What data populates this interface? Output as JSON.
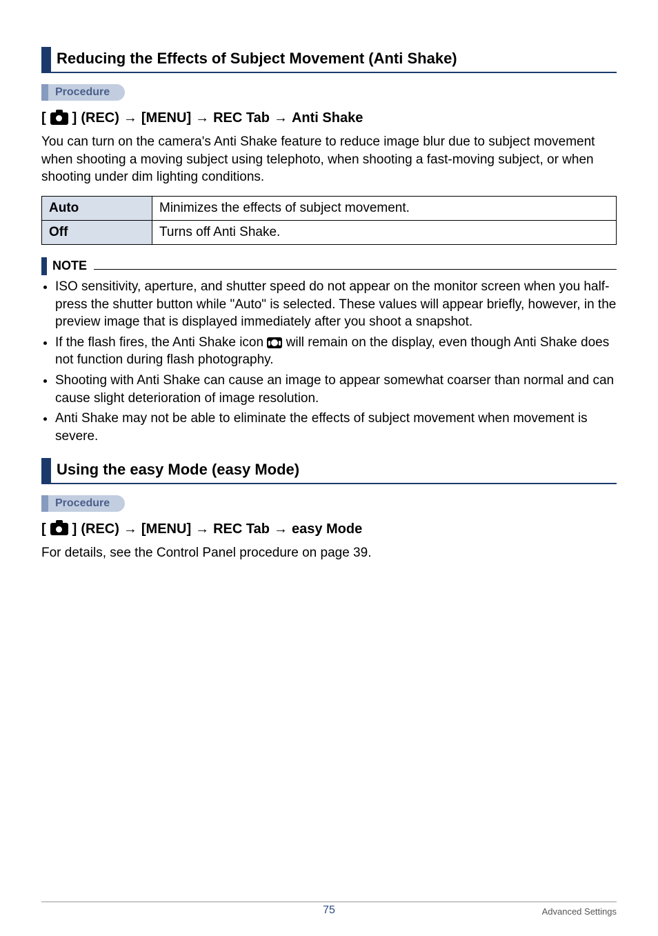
{
  "sections": {
    "anti_shake": {
      "heading": "Reducing the Effects of Subject Movement (Anti Shake)",
      "procedure_label": "Procedure",
      "breadcrumb": {
        "rec": "(REC)",
        "menu": "[MENU]",
        "tab": "REC Tab",
        "target": "Anti Shake"
      },
      "intro": "You can turn on the camera's Anti Shake feature to reduce image blur due to subject movement when shooting a moving subject using telephoto, when shooting a fast-moving subject, or when shooting under dim lighting conditions.",
      "table": {
        "rows": [
          {
            "key": "Auto",
            "value": "Minimizes the effects of subject movement."
          },
          {
            "key": "Off",
            "value": "Turns off Anti Shake."
          }
        ]
      },
      "note_label": "NOTE",
      "notes": {
        "n0": "ISO sensitivity, aperture, and shutter speed do not appear on the monitor screen when you half-press the shutter button while \"Auto\" is selected. These values will appear briefly, however, in the preview image that is displayed immediately after you shoot a snapshot.",
        "n1a": "If the flash fires, the Anti Shake icon ",
        "n1b": " will remain on the display, even though Anti Shake does not function during flash photography.",
        "n2": "Shooting with Anti Shake can cause an image to appear somewhat coarser than normal and can cause slight deterioration of image resolution.",
        "n3": "Anti Shake may not be able to eliminate the effects of subject movement when movement is severe."
      }
    },
    "easy_mode": {
      "heading": "Using the easy Mode (easy Mode)",
      "procedure_label": "Procedure",
      "breadcrumb": {
        "rec": "(REC)",
        "menu": "[MENU]",
        "tab": "REC Tab",
        "target": "easy Mode"
      },
      "body": "For details, see the Control Panel procedure on page 39."
    }
  },
  "footer": {
    "page": "75",
    "chapter": "Advanced Settings"
  },
  "arrow": "→"
}
